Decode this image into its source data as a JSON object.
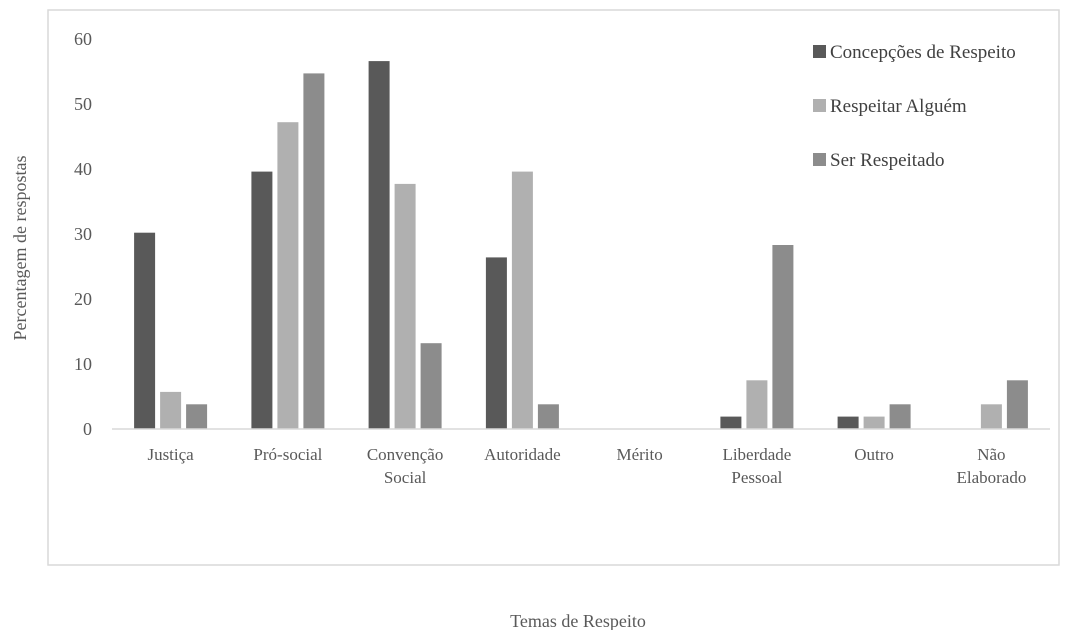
{
  "chart_data": {
    "type": "bar",
    "xlabel": "Temas de Respeito",
    "ylabel": "Percentagem de respostas",
    "ylim": [
      0,
      60
    ],
    "y_ticks": [
      0,
      10,
      20,
      30,
      40,
      50,
      60
    ],
    "grid": false,
    "legend_position": "top-right",
    "categories": [
      [
        "Justiça"
      ],
      [
        "Pró-social"
      ],
      [
        "Convenção",
        "Social"
      ],
      [
        "Autoridade"
      ],
      [
        "Mérito"
      ],
      [
        "Liberdade",
        "Pessoal"
      ],
      [
        "Outro"
      ],
      [
        "Não",
        "Elaborado"
      ]
    ],
    "series": [
      {
        "name": "Concepções de Respeito",
        "color": "#595959",
        "values": [
          30.2,
          39.6,
          56.6,
          26.4,
          0,
          1.9,
          1.9,
          0
        ]
      },
      {
        "name": "Respeitar Alguém",
        "color": "#b0b0b0",
        "values": [
          5.7,
          47.2,
          37.7,
          39.6,
          0,
          7.5,
          1.9,
          3.8
        ]
      },
      {
        "name": "Ser Respeitado",
        "color": "#8c8c8c",
        "values": [
          3.8,
          54.7,
          13.2,
          3.8,
          0,
          28.3,
          3.8,
          7.5
        ]
      }
    ]
  }
}
